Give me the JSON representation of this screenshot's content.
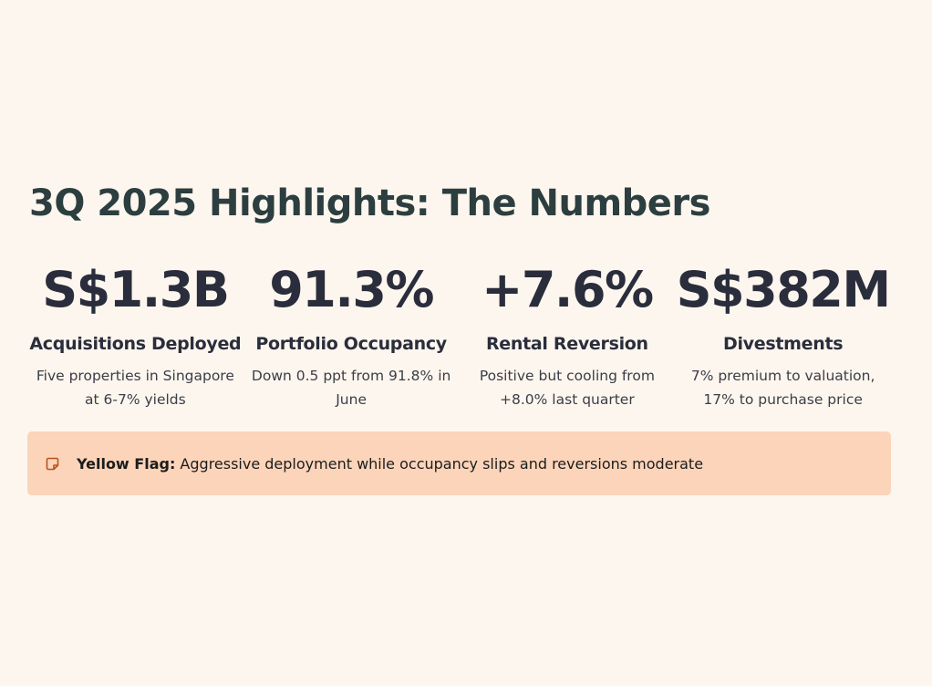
{
  "title": "3Q 2025 Highlights: The Numbers",
  "stats": [
    {
      "value": "S$1.3B",
      "label": "Acquisitions Deployed",
      "desc": "Five properties in Singapore at 6-7% yields"
    },
    {
      "value": "91.3%",
      "label": "Portfolio Occupancy",
      "desc": "Down 0.5 ppt from 91.8% in June"
    },
    {
      "value": "+7.6%",
      "label": "Rental Reversion",
      "desc": "Positive but cooling from +8.0% last quarter"
    },
    {
      "value": "S$382M",
      "label": "Divestments",
      "desc": "7% premium to valuation, 17% to purchase price"
    }
  ],
  "flag": {
    "icon": "sticky-note-icon",
    "label": "Yellow Flag:",
    "text": " Aggressive deployment while occupancy slips and reversions moderate"
  },
  "colors": {
    "background": "#fdf6ee",
    "flag_background": "#fbd4b9",
    "flag_icon": "#b8541f",
    "title": "#2c3e3f"
  }
}
